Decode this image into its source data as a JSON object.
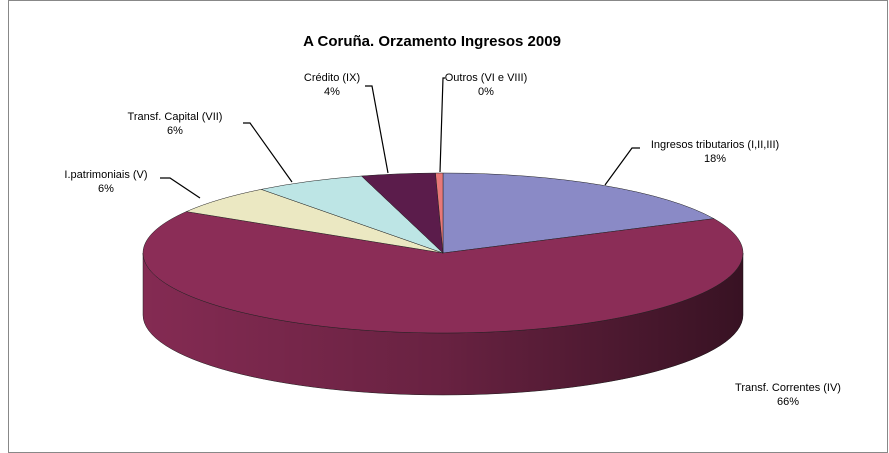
{
  "chart_data": {
    "type": "pie3d",
    "title": "A Coruña. Orzamento Ingresos 2009",
    "categories": [
      "Ingresos tributarios (I,II,III)",
      "Transf. Correntes (IV)",
      "I.patrimoniais (V)",
      "Transf. Capital (VII)",
      "Crédito (IX)",
      "Outros (VI e VIII)"
    ],
    "values": [
      18,
      66,
      6,
      6,
      4,
      0.4
    ],
    "value_labels": [
      "18%",
      "66%",
      "6%",
      "6%",
      "4%",
      "0%"
    ],
    "colors": [
      "#8a8ac6",
      "#8b2d57",
      "#ebe8c2",
      "#bde5e5",
      "#5b1c4b",
      "#e87878"
    ]
  }
}
